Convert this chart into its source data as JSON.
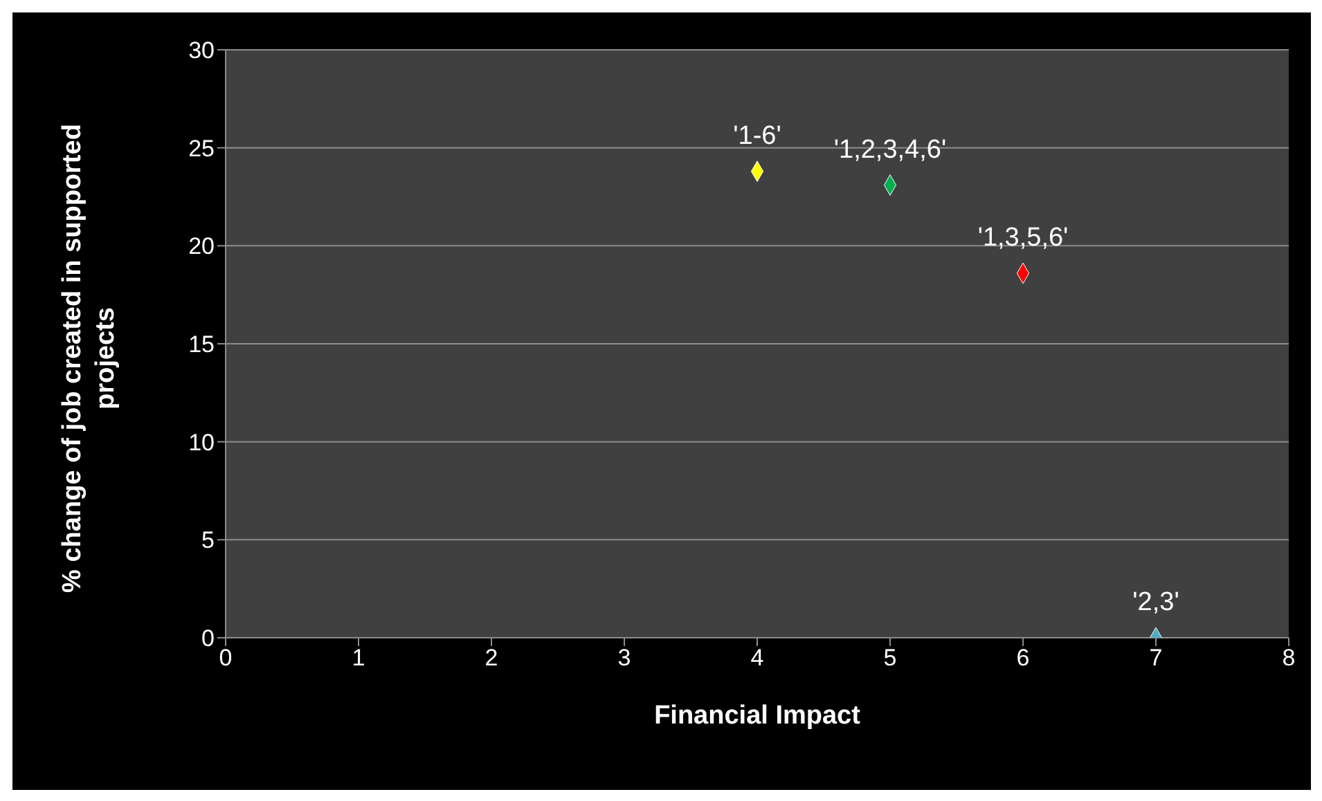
{
  "chart_data": {
    "type": "scatter",
    "xlabel": "Financial Impact",
    "ylabel": "% change of job created in supported projects",
    "x": [
      4,
      5,
      6,
      7
    ],
    "values": [
      23.8,
      23.1,
      18.6,
      0
    ],
    "colors": [
      "#ffff00",
      "#00b050",
      "#ff0000",
      "#4bacc6"
    ],
    "marker": "diamond",
    "xlim": [
      0,
      8
    ],
    "xticks": [
      0,
      1,
      2,
      3,
      4,
      5,
      6,
      7,
      8
    ],
    "ylim": [
      0,
      30
    ],
    "yticks": [
      0,
      5,
      10,
      15,
      20,
      25,
      30
    ],
    "grid": "y",
    "legend": false,
    "annotations": [
      {
        "text": "'1-6'",
        "x": 4,
        "y": 23.8
      },
      {
        "text": "'1,2,3,4,6'",
        "x": 5,
        "y": 23.1
      },
      {
        "text": "'1,3,5,6'",
        "x": 6,
        "y": 18.6
      },
      {
        "text": "'2,3'",
        "x": 7,
        "y": 0
      }
    ]
  }
}
